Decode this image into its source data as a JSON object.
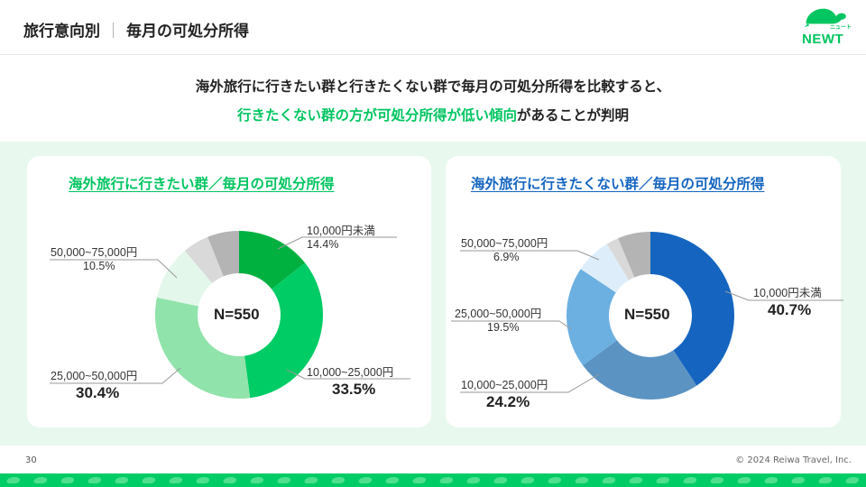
{
  "header": {
    "title_left": "旅行意向別",
    "separator": "｜",
    "title_right": "毎月の可処分所得",
    "logo_text": "NEWT",
    "logo_kana": "ニュート"
  },
  "lead": {
    "line1": "海外旅行に行きたい群と行きたくない群で毎月の可処分所得を比較すると、",
    "line2_highlight": "行きたくない群の方が可処分所得が低い傾向",
    "line2_rest": "があることが判明"
  },
  "colors": {
    "accent": "#00c560",
    "blue": "#1565c0",
    "panel": "#e8f8ee"
  },
  "chart_data": [
    {
      "type": "pie",
      "title": "海外旅行に行きたい群／毎月の可処分所得",
      "center_label": "N=550",
      "slices": [
        {
          "label": "10,000円未満",
          "value": 14.4,
          "display": "14.4%",
          "color": "#00b140"
        },
        {
          "label": "10,000~25,000円",
          "value": 33.5,
          "display": "33.5%",
          "color": "#00cc66"
        },
        {
          "label": "25,000~50,000円",
          "value": 30.4,
          "display": "30.4%",
          "color": "#90e3aa"
        },
        {
          "label": "50,000~75,000円",
          "value": 10.5,
          "display": "10.5%",
          "color": "#e3f7ea"
        },
        {
          "label": "",
          "value": 5.1,
          "display": "",
          "color": "#d9d9d9"
        },
        {
          "label": "",
          "value": 6.1,
          "display": "",
          "color": "#b4b4b4"
        }
      ]
    },
    {
      "type": "pie",
      "title": "海外旅行に行きたくない群／毎月の可処分所得",
      "center_label": "N=550",
      "slices": [
        {
          "label": "10,000円未満",
          "value": 40.7,
          "display": "40.7%",
          "color": "#1565c0"
        },
        {
          "label": "10,000~25,000円",
          "value": 24.2,
          "display": "24.2%",
          "color": "#5b93c3"
        },
        {
          "label": "25,000~50,000円",
          "value": 19.5,
          "display": "19.5%",
          "color": "#6cb0e2"
        },
        {
          "label": "50,000~75,000円",
          "value": 6.9,
          "display": "6.9%",
          "color": "#ddeefa"
        },
        {
          "label": "",
          "value": 2.4,
          "display": "",
          "color": "#d9d9d9"
        },
        {
          "label": "",
          "value": 6.3,
          "display": "",
          "color": "#b4b4b4"
        }
      ]
    }
  ],
  "footer": {
    "page": "30",
    "copyright": "© 2024 Reiwa Travel, Inc."
  }
}
